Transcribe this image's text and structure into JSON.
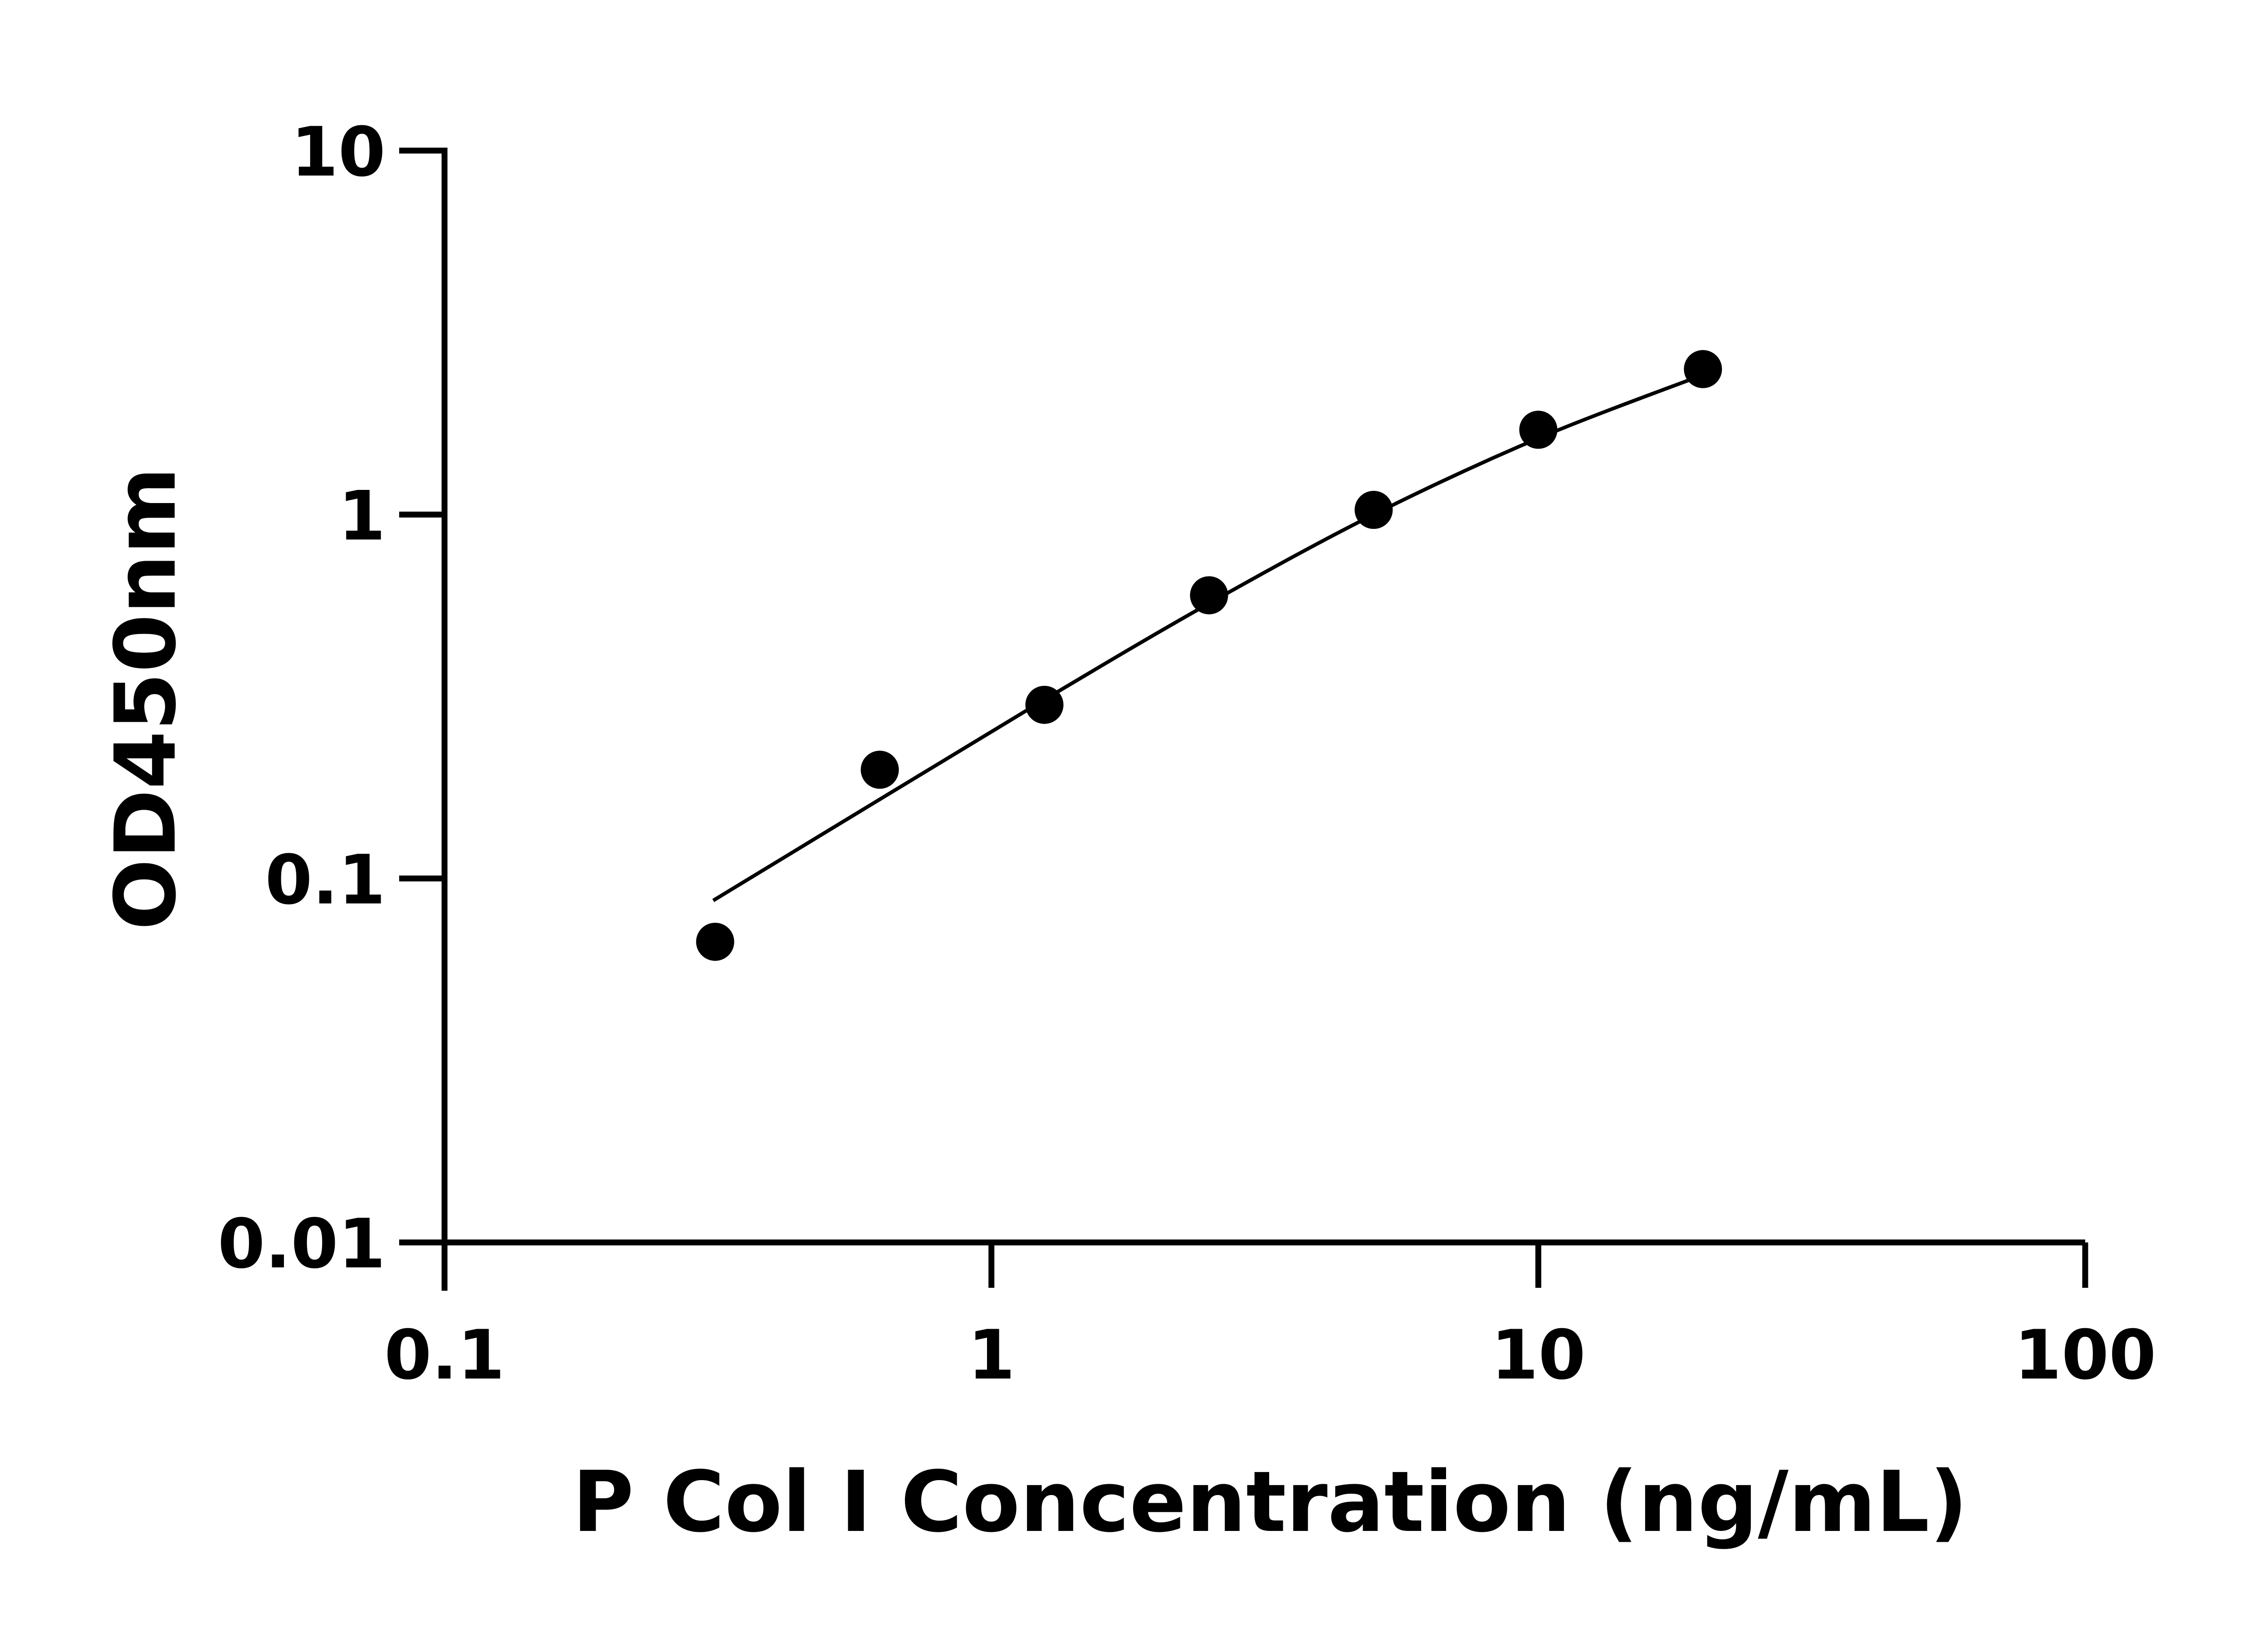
{
  "chart_data": {
    "type": "scatter",
    "xlabel": "P Col I  Concentration (ng/mL)",
    "ylabel": "OD450nm",
    "x_scale": "log",
    "y_scale": "log",
    "xlim": [
      0.1,
      100
    ],
    "ylim": [
      0.01,
      10
    ],
    "x_ticks": [
      0.1,
      1,
      10,
      100
    ],
    "x_tick_labels": [
      "0.1",
      "1",
      "10",
      "100"
    ],
    "y_ticks": [
      0.01,
      0.1,
      1,
      10
    ],
    "y_tick_labels": [
      "0.01",
      "0.1",
      "1",
      "10"
    ],
    "grid": false,
    "colors": {
      "points": "#000000",
      "curve": "#000000",
      "axes": "#000000"
    },
    "points": [
      {
        "x": 0.3125,
        "y": 0.067
      },
      {
        "x": 0.625,
        "y": 0.199
      },
      {
        "x": 1.25,
        "y": 0.3
      },
      {
        "x": 2.5,
        "y": 0.6
      },
      {
        "x": 5,
        "y": 1.03
      },
      {
        "x": 10,
        "y": 1.71
      },
      {
        "x": 20,
        "y": 2.51
      }
    ],
    "fit_curve": [
      {
        "x": 0.31,
        "y": 0.087
      },
      {
        "x": 0.625,
        "y": 0.165
      },
      {
        "x": 1.25,
        "y": 0.31
      },
      {
        "x": 2.5,
        "y": 0.57
      },
      {
        "x": 5,
        "y": 1.0
      },
      {
        "x": 10,
        "y": 1.62
      },
      {
        "x": 20,
        "y": 2.42
      }
    ]
  }
}
